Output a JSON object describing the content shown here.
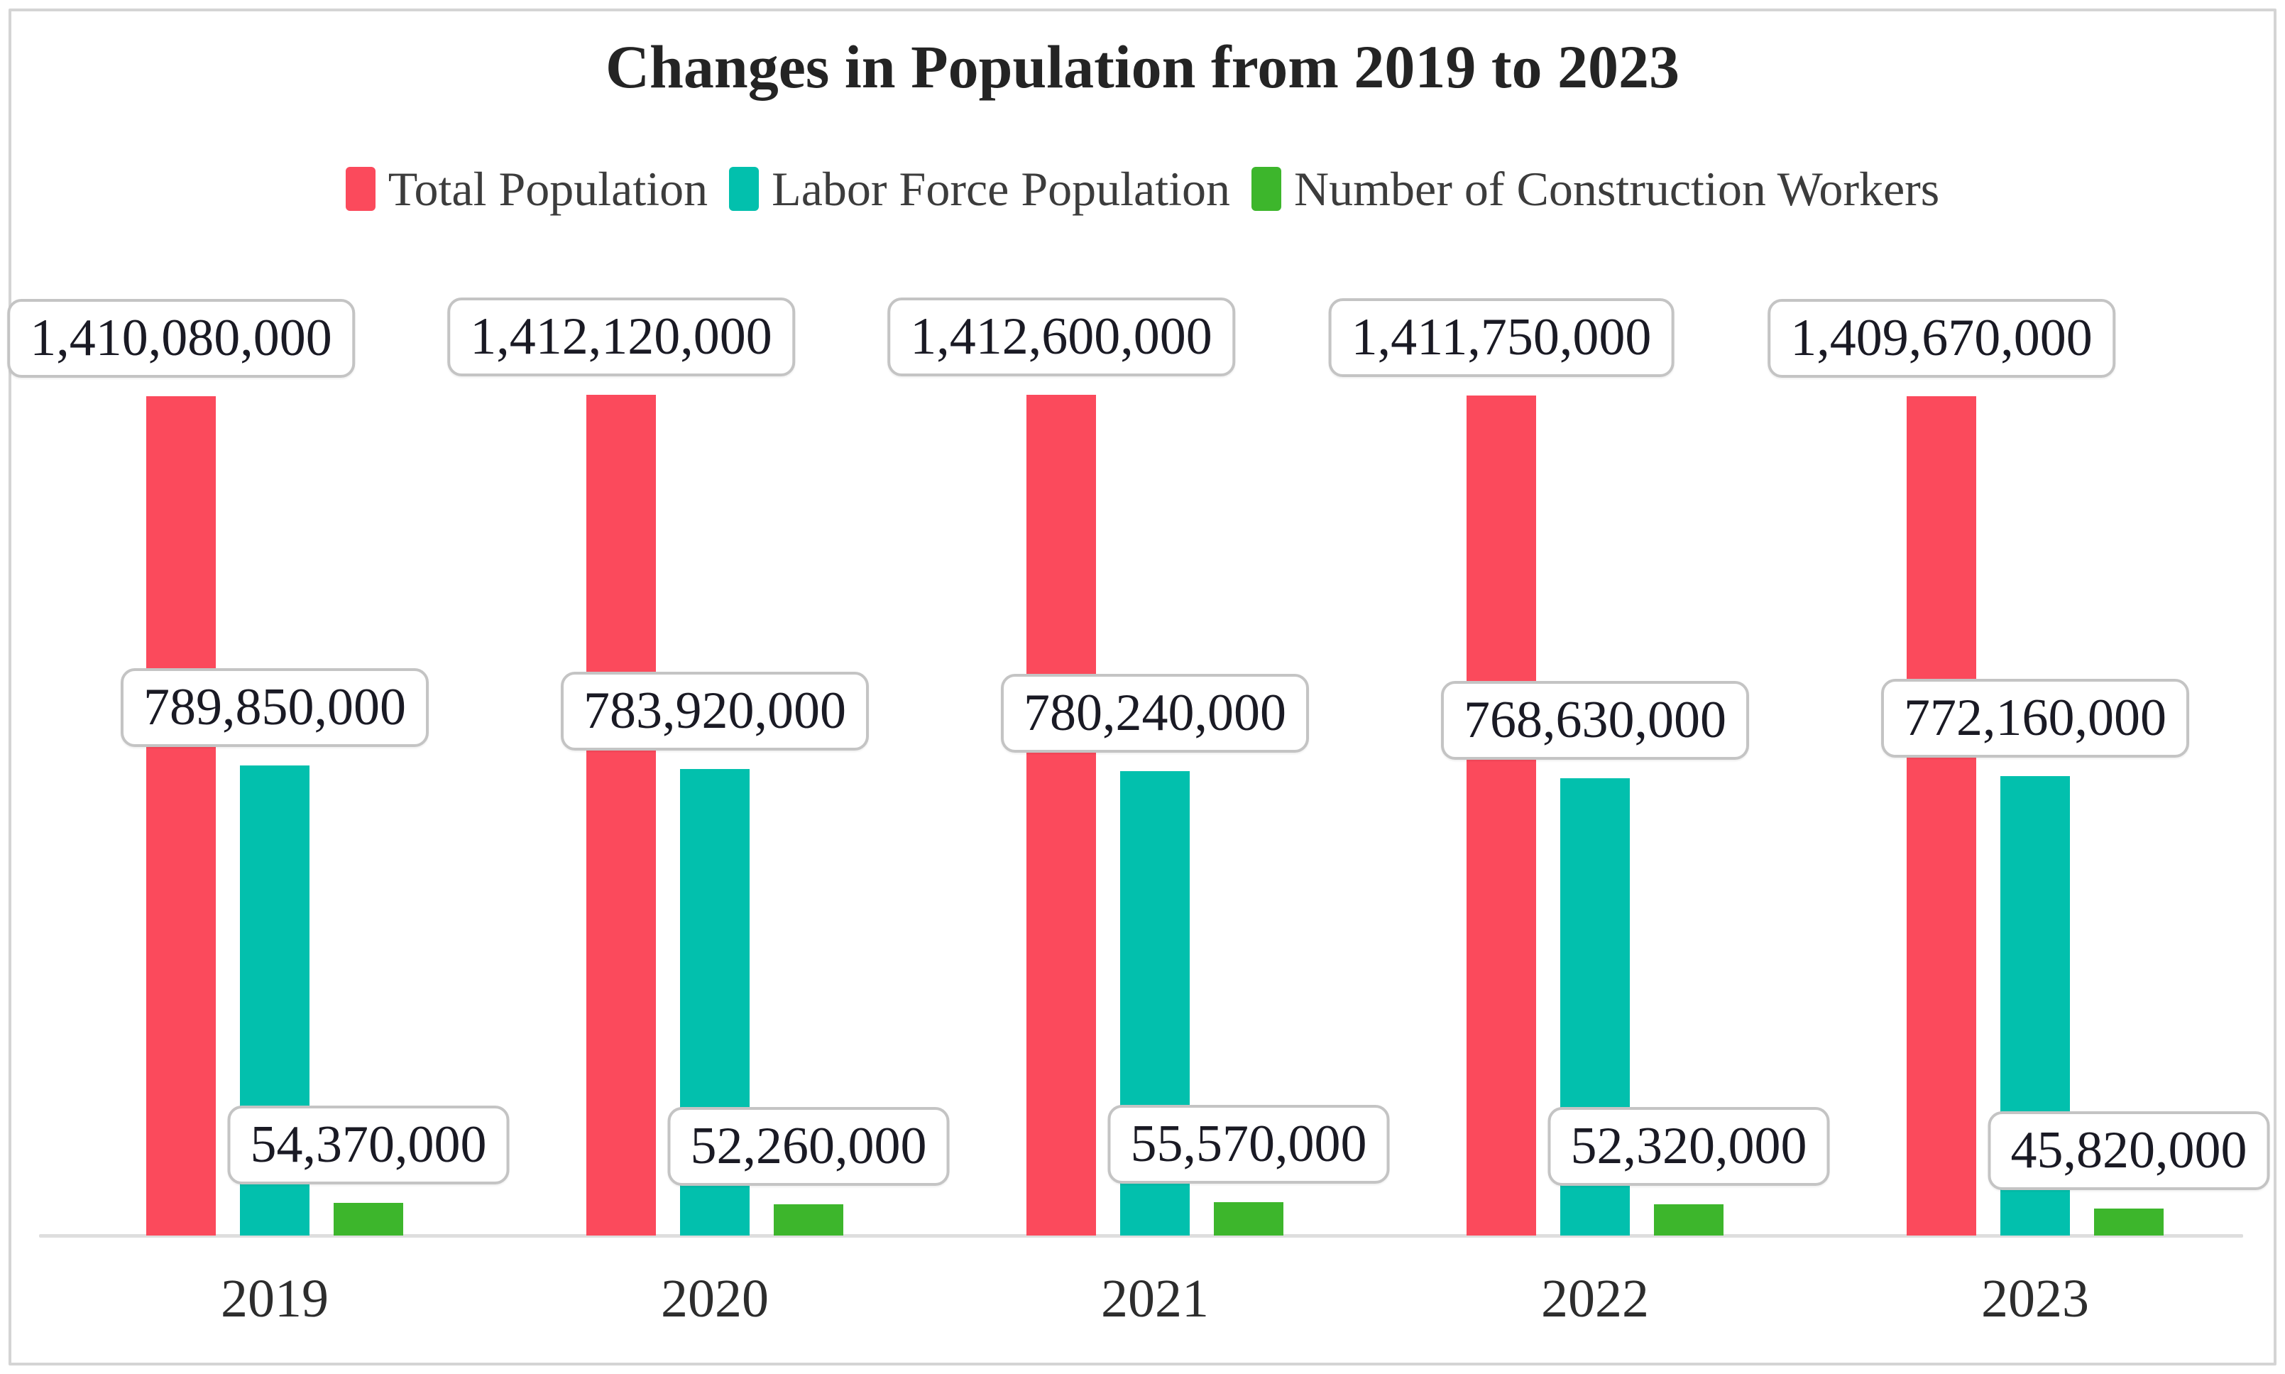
{
  "title": "Changes in Population from 2019 to 2023",
  "legend": [
    {
      "label": "Total Population",
      "color": "#FB4A5C"
    },
    {
      "label": "Labor Force Population",
      "color": "#02C0AD"
    },
    {
      "label": "Number of Construction Workers",
      "color": "#3DB62C"
    }
  ],
  "chart_data": {
    "type": "bar",
    "title": "Changes in Population from 2019 to 2023",
    "categories": [
      "2019",
      "2020",
      "2021",
      "2022",
      "2023"
    ],
    "series": [
      {
        "name": "Total Population",
        "color": "#FB4A5C",
        "values": [
          1410080000,
          1412120000,
          1412600000,
          1411750000,
          1409670000
        ],
        "labels": [
          "1,410,080,000",
          "1,412,120,000",
          "1,412,600,000",
          "1,411,750,000",
          "1,409,670,000"
        ]
      },
      {
        "name": "Labor Force Population",
        "color": "#02C0AD",
        "values": [
          789850000,
          783920000,
          780240000,
          768630000,
          772160000
        ],
        "labels": [
          "789,850,000",
          "783,920,000",
          "780,240,000",
          "768,630,000",
          "772,160,000"
        ]
      },
      {
        "name": "Number of Construction Workers",
        "color": "#3DB62C",
        "values": [
          54370000,
          52260000,
          55570000,
          52320000,
          45820000
        ],
        "labels": [
          "54,370,000",
          "52,260,000",
          "55,570,000",
          "52,320,000",
          "45,820,000"
        ]
      }
    ],
    "xlabel": "",
    "ylabel": "",
    "ylim": [
      0,
      1420000000
    ],
    "grid": false,
    "legend_position": "top",
    "value_labels_shown": true,
    "axis_line_color": "#dedede"
  }
}
